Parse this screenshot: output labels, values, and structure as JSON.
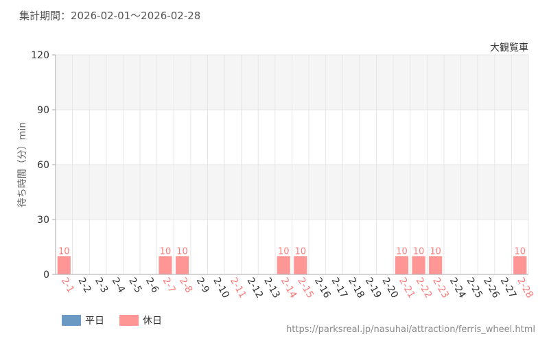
{
  "page": {
    "title": "集計期間：2026-02-01～2026-02-28",
    "source_url": "https://parksreal.jp/nasuhai/attraction/ferris_wheel.html"
  },
  "legend": {
    "weekday_label": "平日",
    "holiday_label": "休日"
  },
  "colors": {
    "weekday": "#6a9ac4",
    "holiday": "#ff9696",
    "holiday_tick": "#ff7b7b",
    "weekday_tick": "#333333",
    "band": "#f5f5f5",
    "grid": "#e6e6e6"
  },
  "chart_data": {
    "type": "bar",
    "title": "大観覧車",
    "ylabel": "待ち時間（分）min",
    "xlabel": "",
    "ylim": [
      0,
      120
    ],
    "yticks": [
      0,
      30,
      60,
      90,
      120
    ],
    "grid": true,
    "legend_position": "bottom-left",
    "categories": [
      "2-1",
      "2-2",
      "2-3",
      "2-4",
      "2-5",
      "2-6",
      "2-7",
      "2-8",
      "2-9",
      "2-10",
      "2-11",
      "2-12",
      "2-13",
      "2-14",
      "2-15",
      "2-16",
      "2-17",
      "2-18",
      "2-19",
      "2-20",
      "2-21",
      "2-22",
      "2-23",
      "2-24",
      "2-25",
      "2-26",
      "2-27",
      "2-28"
    ],
    "holiday": [
      true,
      false,
      false,
      false,
      false,
      false,
      true,
      true,
      false,
      false,
      true,
      false,
      false,
      true,
      true,
      false,
      false,
      false,
      false,
      false,
      true,
      true,
      true,
      false,
      false,
      false,
      false,
      true
    ],
    "series": [
      {
        "name": "平日",
        "values": [
          null,
          null,
          null,
          null,
          null,
          null,
          null,
          null,
          null,
          null,
          null,
          null,
          null,
          null,
          null,
          null,
          null,
          null,
          null,
          null,
          null,
          null,
          null,
          null,
          null,
          null,
          null,
          null
        ]
      },
      {
        "name": "休日",
        "values": [
          10,
          null,
          null,
          null,
          null,
          null,
          10,
          10,
          null,
          null,
          null,
          null,
          null,
          10,
          10,
          null,
          null,
          null,
          null,
          null,
          10,
          10,
          10,
          null,
          null,
          null,
          null,
          10
        ]
      }
    ]
  }
}
